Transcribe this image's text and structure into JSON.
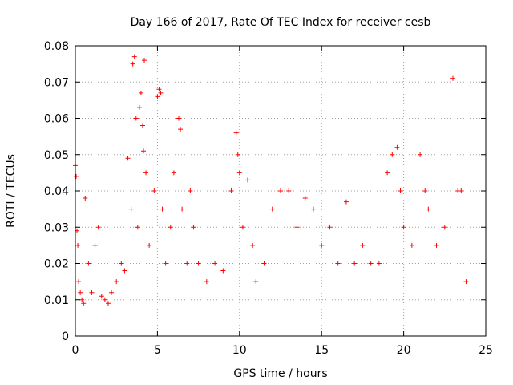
{
  "chart_data": {
    "type": "scatter",
    "title": "Day 166 of 2017, Rate Of TEC Index for receiver cesb",
    "xlabel": "GPS time / hours",
    "ylabel": "ROTI / TECUs",
    "xlim": [
      0,
      25
    ],
    "ylim": [
      0,
      0.08
    ],
    "x_ticks": [
      0,
      5,
      10,
      15,
      20,
      25
    ],
    "x_tick_labels": [
      "0",
      "5",
      "10",
      "15",
      "20",
      "25"
    ],
    "y_ticks": [
      0,
      0.01,
      0.02,
      0.03,
      0.04,
      0.05,
      0.06,
      0.07,
      0.08
    ],
    "y_tick_labels": [
      "0",
      "0.01",
      "0.02",
      "0.03",
      "0.04",
      "0.05",
      "0.06",
      "0.07",
      "0.08"
    ],
    "grid": true,
    "marker": "plus",
    "color": "#ff0000",
    "series": [
      {
        "x": [
          0.0,
          0.05,
          0.1,
          0.15,
          0.2,
          0.3,
          0.4,
          0.5,
          0.6,
          0.8,
          1.0,
          1.2,
          1.4,
          1.6,
          1.8,
          2.0,
          2.2,
          2.5,
          2.8,
          3.0,
          3.2,
          3.4,
          3.5,
          3.6,
          3.7,
          3.8,
          3.9,
          4.0,
          4.1,
          4.15,
          4.2,
          4.3,
          4.5,
          4.8,
          5.0,
          5.1,
          5.2,
          5.3,
          5.5,
          5.8,
          6.0,
          6.3,
          6.4,
          6.5,
          6.8,
          7.0,
          7.2,
          7.5,
          8.0,
          8.5,
          9.0,
          9.5,
          9.8,
          9.9,
          10.0,
          10.2,
          10.5,
          10.8,
          11.0,
          11.5,
          12.0,
          12.5,
          13.0,
          13.5,
          14.0,
          14.5,
          15.0,
          15.5,
          16.0,
          16.5,
          17.0,
          17.5,
          18.0,
          18.5,
          19.0,
          19.3,
          19.6,
          19.8,
          20.0,
          20.5,
          21.0,
          21.3,
          21.5,
          22.0,
          22.5,
          23.0,
          23.3,
          23.5,
          23.8
        ],
        "y": [
          0.047,
          0.044,
          0.029,
          0.025,
          0.015,
          0.012,
          0.01,
          0.009,
          0.038,
          0.02,
          0.012,
          0.025,
          0.03,
          0.011,
          0.01,
          0.009,
          0.012,
          0.015,
          0.02,
          0.018,
          0.049,
          0.035,
          0.075,
          0.077,
          0.06,
          0.03,
          0.063,
          0.067,
          0.058,
          0.051,
          0.076,
          0.045,
          0.025,
          0.04,
          0.066,
          0.068,
          0.067,
          0.035,
          0.02,
          0.03,
          0.045,
          0.06,
          0.057,
          0.035,
          0.02,
          0.04,
          0.03,
          0.02,
          0.015,
          0.02,
          0.018,
          0.04,
          0.056,
          0.05,
          0.045,
          0.03,
          0.043,
          0.025,
          0.015,
          0.02,
          0.035,
          0.04,
          0.04,
          0.03,
          0.038,
          0.035,
          0.025,
          0.03,
          0.02,
          0.037,
          0.02,
          0.025,
          0.02,
          0.02,
          0.045,
          0.05,
          0.052,
          0.04,
          0.03,
          0.025,
          0.05,
          0.04,
          0.035,
          0.025,
          0.03,
          0.071,
          0.04,
          0.04,
          0.015
        ]
      }
    ]
  }
}
